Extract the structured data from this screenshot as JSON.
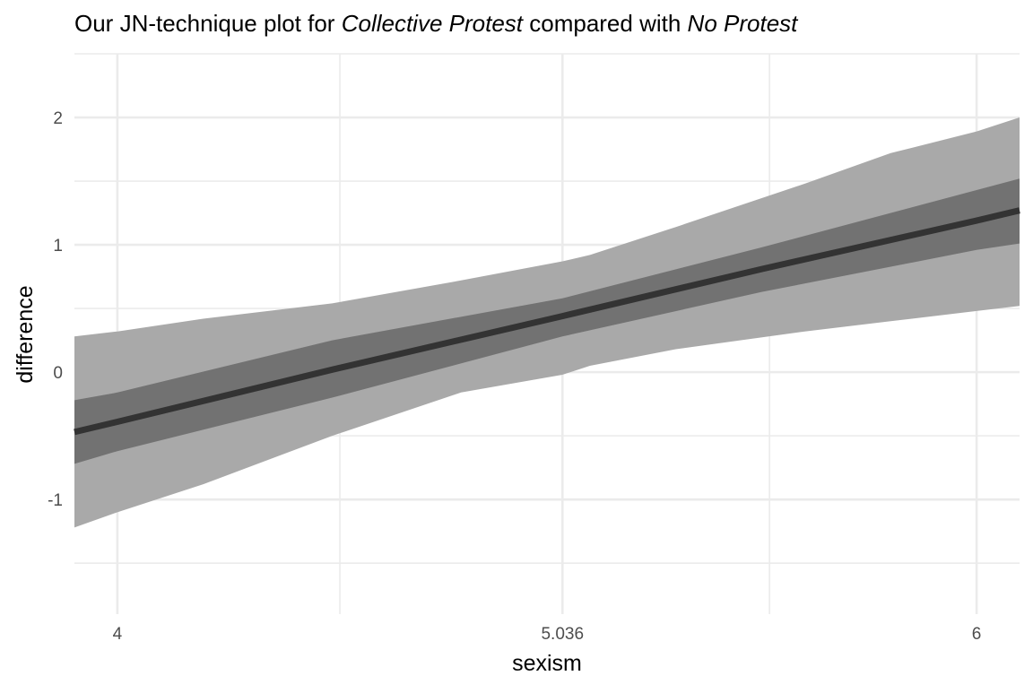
{
  "chart_data": {
    "type": "area",
    "title": {
      "part1": "Our JN-technique plot for ",
      "part2": "Collective Protest",
      "part3": " compared with ",
      "part4": "No Protest"
    },
    "xlabel": "sexism",
    "ylabel": "difference",
    "xlim": [
      3.9,
      6.1
    ],
    "ylim": [
      -1.9,
      2.5
    ],
    "grid": true,
    "x_ticks": [
      4,
      5.036,
      6
    ],
    "x_tick_labels": [
      "4",
      "5.036",
      "6"
    ],
    "x_minor_ticks": [
      4.518,
      5.518
    ],
    "y_ticks": [
      -1,
      0,
      1,
      2
    ],
    "y_tick_labels": [
      "-1",
      "0",
      "1",
      "2"
    ],
    "y_minor_ticks": [
      -1.5,
      -0.5,
      0.5,
      1.5,
      2.5
    ],
    "colors": {
      "outer_band": "#a9a9a9",
      "inner_band": "#727272",
      "line": "#333333",
      "grid": "#ebebeb"
    },
    "series": [
      {
        "role": "estimate",
        "x": [
          3.9,
          4.0,
          4.5,
          5.036,
          5.5,
          6.0,
          6.1
        ],
        "y": [
          -0.47,
          -0.39,
          0.02,
          0.44,
          0.81,
          1.19,
          1.27
        ]
      },
      {
        "role": "inner_band",
        "x": [
          3.9,
          4.0,
          4.5,
          5.036,
          5.5,
          6.0,
          6.1
        ],
        "lower": [
          -0.72,
          -0.62,
          -0.2,
          0.28,
          0.63,
          0.96,
          1.01
        ],
        "upper": [
          -0.22,
          -0.16,
          0.25,
          0.58,
          0.98,
          1.43,
          1.52
        ]
      },
      {
        "role": "outer_band",
        "x": [
          3.9,
          4.0,
          4.2,
          4.5,
          4.8,
          5.036,
          5.1,
          5.3,
          5.6,
          5.8,
          6.0,
          6.1
        ],
        "lower": [
          -1.22,
          -1.1,
          -0.88,
          -0.5,
          -0.16,
          -0.02,
          0.05,
          0.18,
          0.32,
          0.4,
          0.48,
          0.52
        ],
        "upper": [
          0.28,
          0.32,
          0.42,
          0.54,
          0.72,
          0.87,
          0.92,
          1.14,
          1.48,
          1.72,
          1.89,
          2.0
        ]
      }
    ]
  }
}
